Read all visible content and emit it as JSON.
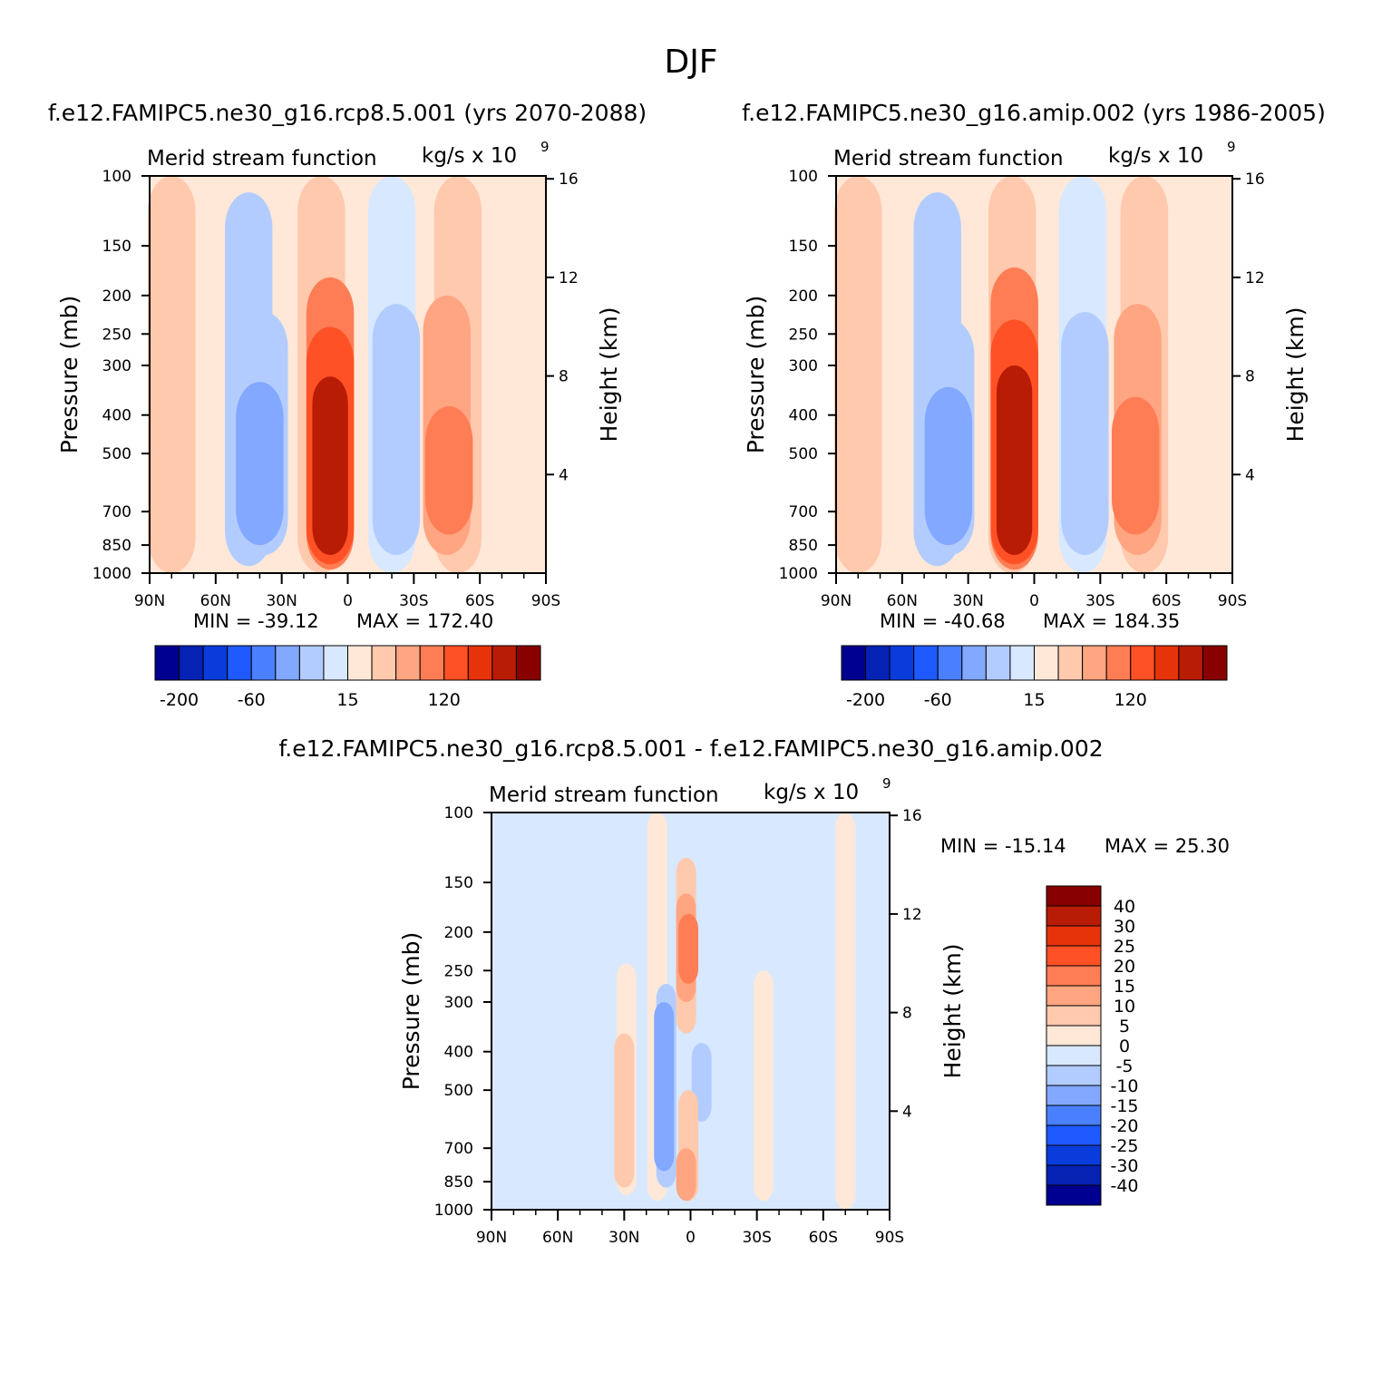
{
  "page": {
    "title": "DJF"
  },
  "colors": {
    "neg": [
      "#000090",
      "#0522B4",
      "#0A3CDC",
      "#1E5AFF",
      "#4A80FF",
      "#82A8FF",
      "#B3CCFF",
      "#D8E8FF"
    ],
    "pos": [
      "#FFE8D8",
      "#FFC9AE",
      "#FFA581",
      "#FF7D54",
      "#FF5125",
      "#E6330A",
      "#B81C05",
      "#880000"
    ],
    "diff_scale": [
      "#000090",
      "#0522B4",
      "#0A3CDC",
      "#1E5AFF",
      "#4A80FF",
      "#82A8FF",
      "#B3CCFF",
      "#D8E8FF",
      "#FFE8D8",
      "#FFC9AE",
      "#FFA581",
      "#FF7D54",
      "#FF5125",
      "#E6330A",
      "#B81C05",
      "#880000"
    ]
  },
  "chart_data": [
    {
      "type": "heatmap",
      "panel": "top-left",
      "title": "f.e12.FAMIPC5.ne30_g16.rcp8.5.001 (yrs 2070-2088)",
      "left_string": "Merid stream function",
      "right_string_base": "kg/s x 10",
      "right_string_exp": "9",
      "ylabel": "Pressure (mb)",
      "ylabel_right": "Height (km)",
      "yticks": [
        100,
        150,
        200,
        250,
        300,
        400,
        500,
        700,
        850,
        1000
      ],
      "yticks_right": [
        16,
        12,
        8,
        4
      ],
      "xtick_labels": [
        "90N",
        "60N",
        "30N",
        "0",
        "30S",
        "60S",
        "90S"
      ],
      "xlim": [
        90,
        -90
      ],
      "ylim": [
        1000,
        100
      ],
      "min_label": "MIN = -39.12",
      "max_label": "MAX = 172.40",
      "colorbar_labels": [
        "-200",
        "-60",
        "15",
        "120"
      ],
      "cells": [
        {
          "lat": 80,
          "p0": 100,
          "p1": 1000,
          "v": 5
        },
        {
          "lat": 45,
          "p0": 110,
          "p1": 960,
          "v": -8
        },
        {
          "lat": 38,
          "p0": 220,
          "p1": 900,
          "v": -12
        },
        {
          "lat": 40,
          "p0": 330,
          "p1": 850,
          "v": -20
        },
        {
          "lat": 12,
          "p0": 100,
          "p1": 1000,
          "v": 10
        },
        {
          "lat": 8,
          "p0": 180,
          "p1": 980,
          "v": 40
        },
        {
          "lat": 8,
          "p0": 240,
          "p1": 950,
          "v": 80
        },
        {
          "lat": 8,
          "p0": 320,
          "p1": 900,
          "v": 150
        },
        {
          "lat": -20,
          "p0": 100,
          "p1": 1000,
          "v": -5
        },
        {
          "lat": -22,
          "p0": 210,
          "p1": 900,
          "v": -15
        },
        {
          "lat": -50,
          "p0": 100,
          "p1": 1000,
          "v": 5
        },
        {
          "lat": -45,
          "p0": 200,
          "p1": 900,
          "v": 20
        },
        {
          "lat": -46,
          "p0": 380,
          "p1": 800,
          "v": 40
        }
      ]
    },
    {
      "type": "heatmap",
      "panel": "top-right",
      "title": "f.e12.FAMIPC5.ne30_g16.amip.002 (yrs 1986-2005)",
      "left_string": "Merid stream function",
      "right_string_base": "kg/s x 10",
      "right_string_exp": "9",
      "ylabel": "Pressure (mb)",
      "ylabel_right": "Height (km)",
      "yticks": [
        100,
        150,
        200,
        250,
        300,
        400,
        500,
        700,
        850,
        1000
      ],
      "yticks_right": [
        16,
        12,
        8,
        4
      ],
      "xtick_labels": [
        "90N",
        "60N",
        "30N",
        "0",
        "30S",
        "60S",
        "90S"
      ],
      "xlim": [
        90,
        -90
      ],
      "ylim": [
        1000,
        100
      ],
      "min_label": "MIN = -40.68",
      "max_label": "MAX = 184.35",
      "colorbar_labels": [
        "-200",
        "-60",
        "15",
        "120"
      ],
      "cells": [
        {
          "lat": 80,
          "p0": 100,
          "p1": 1000,
          "v": 5
        },
        {
          "lat": 44,
          "p0": 110,
          "p1": 960,
          "v": -8
        },
        {
          "lat": 38,
          "p0": 230,
          "p1": 900,
          "v": -12
        },
        {
          "lat": 39,
          "p0": 340,
          "p1": 850,
          "v": -20
        },
        {
          "lat": 10,
          "p0": 100,
          "p1": 1000,
          "v": 10
        },
        {
          "lat": 9,
          "p0": 170,
          "p1": 980,
          "v": 40
        },
        {
          "lat": 9,
          "p0": 230,
          "p1": 950,
          "v": 80
        },
        {
          "lat": 9,
          "p0": 300,
          "p1": 900,
          "v": 160
        },
        {
          "lat": -22,
          "p0": 100,
          "p1": 1000,
          "v": -5
        },
        {
          "lat": -23,
          "p0": 220,
          "p1": 900,
          "v": -15
        },
        {
          "lat": -50,
          "p0": 100,
          "p1": 1000,
          "v": 5
        },
        {
          "lat": -47,
          "p0": 210,
          "p1": 900,
          "v": 20
        },
        {
          "lat": -46,
          "p0": 360,
          "p1": 800,
          "v": 40
        }
      ]
    },
    {
      "type": "heatmap",
      "panel": "bottom",
      "title": "f.e12.FAMIPC5.ne30_g16.rcp8.5.001 - f.e12.FAMIPC5.ne30_g16.amip.002",
      "left_string": "Merid stream function",
      "right_string_base": "kg/s x 10",
      "right_string_exp": "9",
      "ylabel": "Pressure (mb)",
      "ylabel_right": "Height (km)",
      "yticks": [
        100,
        150,
        200,
        250,
        300,
        400,
        500,
        700,
        850,
        1000
      ],
      "yticks_right": [
        16,
        12,
        8,
        4
      ],
      "xtick_labels": [
        "90N",
        "60N",
        "30N",
        "0",
        "30S",
        "60S",
        "90S"
      ],
      "xlim": [
        90,
        -90
      ],
      "ylim": [
        1000,
        100
      ],
      "min_label": "MIN = -15.14",
      "max_label": "MAX =  25.30",
      "colorbar_labels": [
        "40",
        "30",
        "25",
        "20",
        "15",
        "10",
        "5",
        "0",
        "-5",
        "-10",
        "-15",
        "-20",
        "-25",
        "-30",
        "-40"
      ],
      "cells": [
        {
          "lat": 30,
          "p0": 100,
          "p1": 1000,
          "v": -1
        },
        {
          "lat": 15,
          "p0": 100,
          "p1": 950,
          "v": 3
        },
        {
          "lat": 2,
          "p0": 130,
          "p1": 360,
          "v": 7
        },
        {
          "lat": 2,
          "p0": 160,
          "p1": 300,
          "v": 12
        },
        {
          "lat": 1,
          "p0": 180,
          "p1": 270,
          "v": 17
        },
        {
          "lat": 29,
          "p0": 240,
          "p1": 920,
          "v": 3
        },
        {
          "lat": 30,
          "p0": 360,
          "p1": 880,
          "v": 7
        },
        {
          "lat": 11,
          "p0": 270,
          "p1": 880,
          "v": -7
        },
        {
          "lat": 12,
          "p0": 300,
          "p1": 800,
          "v": -12
        },
        {
          "lat": -5,
          "p0": 380,
          "p1": 600,
          "v": -6
        },
        {
          "lat": 1,
          "p0": 500,
          "p1": 950,
          "v": 5
        },
        {
          "lat": 2,
          "p0": 700,
          "p1": 950,
          "v": 12
        },
        {
          "lat": -33,
          "p0": 250,
          "p1": 950,
          "v": 3
        },
        {
          "lat": -70,
          "p0": 100,
          "p1": 1000,
          "v": 3
        }
      ]
    }
  ]
}
